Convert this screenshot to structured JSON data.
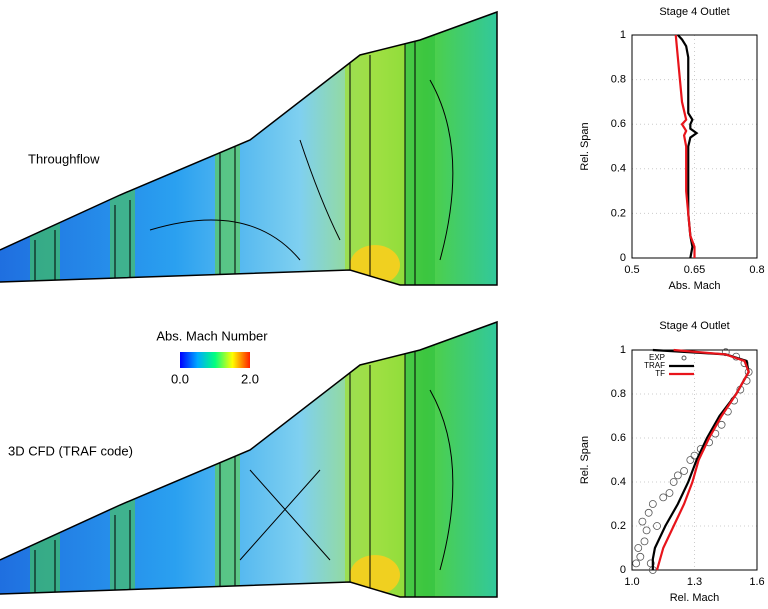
{
  "contour_plots": [
    {
      "label": "Throughflow"
    },
    {
      "label": "3D CFD (TRAF code)"
    }
  ],
  "colorbar": {
    "title": "Abs. Mach Number",
    "range": [
      0,
      2
    ],
    "ticks": [
      {
        "value": 0,
        "label": "0.0"
      },
      {
        "value": 2,
        "label": "2.0"
      }
    ]
  },
  "chart_data": [
    {
      "type": "line",
      "title": "Stage 4 Outlet",
      "x_label": "Abs. Mach",
      "y_label": "Rel. Span",
      "xlim": [
        0.5,
        0.8
      ],
      "xticks": [
        0.5,
        0.65,
        0.8
      ],
      "ylim": [
        0,
        1
      ],
      "yticks": [
        0,
        0.2,
        0.4,
        0.6,
        0.8,
        1
      ],
      "grid": true,
      "series": [
        {
          "color": "#000000",
          "y": [
            0,
            0.05,
            0.1,
            0.2,
            0.3,
            0.4,
            0.5,
            0.54,
            0.56,
            0.58,
            0.6,
            0.62,
            0.65,
            0.7,
            0.8,
            0.9,
            0.95,
            0.98,
            1.0
          ],
          "x": [
            0.64,
            0.645,
            0.64,
            0.635,
            0.635,
            0.635,
            0.635,
            0.64,
            0.655,
            0.64,
            0.64,
            0.645,
            0.635,
            0.635,
            0.635,
            0.635,
            0.63,
            0.62,
            0.61
          ]
        },
        {
          "color": "#e8141b",
          "y": [
            0,
            0.05,
            0.1,
            0.2,
            0.3,
            0.4,
            0.5,
            0.55,
            0.57,
            0.6,
            0.62,
            0.7,
            0.8,
            0.9,
            1.0
          ],
          "x": [
            0.65,
            0.65,
            0.64,
            0.635,
            0.63,
            0.63,
            0.63,
            0.625,
            0.63,
            0.62,
            0.63,
            0.62,
            0.615,
            0.61,
            0.605
          ]
        }
      ]
    },
    {
      "type": "line",
      "title": "Stage 4 Outlet",
      "x_label": "Rel. Mach",
      "y_label": "Rel. Span",
      "xlim": [
        1.0,
        1.6
      ],
      "xticks": [
        {
          "value": 1.0,
          "label": "1.0"
        },
        {
          "value": 1.3,
          "label": "1.3"
        },
        {
          "value": 1.6,
          "label": "1.6"
        }
      ],
      "ylim": [
        0,
        1
      ],
      "yticks": [
        0,
        0.2,
        0.4,
        0.6,
        0.8,
        1
      ],
      "grid": true,
      "legend": "upper left",
      "series": [
        {
          "name": "EXP",
          "style": "markers",
          "color": "#555555",
          "x": [
            1.02,
            1.04,
            1.03,
            1.06,
            1.09,
            1.1,
            1.07,
            1.05,
            1.12,
            1.08,
            1.1,
            1.15,
            1.18,
            1.2,
            1.22,
            1.25,
            1.28,
            1.3,
            1.33,
            1.37,
            1.4,
            1.43,
            1.46,
            1.49,
            1.52,
            1.55,
            1.56,
            1.54,
            1.5,
            1.45
          ],
          "y": [
            0.03,
            0.06,
            0.1,
            0.13,
            0.03,
            0.0,
            0.18,
            0.22,
            0.2,
            0.26,
            0.3,
            0.33,
            0.35,
            0.4,
            0.43,
            0.45,
            0.5,
            0.52,
            0.55,
            0.58,
            0.62,
            0.66,
            0.72,
            0.77,
            0.82,
            0.86,
            0.9,
            0.94,
            0.97,
            0.99
          ]
        },
        {
          "name": "TRAF",
          "color": "#000000",
          "y": [
            0,
            0.05,
            0.1,
            0.2,
            0.3,
            0.4,
            0.5,
            0.6,
            0.7,
            0.8,
            0.9,
            0.95,
            0.98,
            1.0
          ],
          "x": [
            1.1,
            1.1,
            1.11,
            1.16,
            1.22,
            1.27,
            1.31,
            1.36,
            1.42,
            1.5,
            1.56,
            1.55,
            1.45,
            1.1
          ]
        },
        {
          "name": "TF",
          "color": "#e8141b",
          "y": [
            0,
            0.1,
            0.2,
            0.3,
            0.4,
            0.5,
            0.6,
            0.7,
            0.8,
            0.9,
            0.95,
            0.98,
            1.0
          ],
          "x": [
            1.12,
            1.15,
            1.2,
            1.25,
            1.29,
            1.32,
            1.37,
            1.43,
            1.5,
            1.56,
            1.54,
            1.45,
            1.2
          ]
        }
      ]
    }
  ]
}
